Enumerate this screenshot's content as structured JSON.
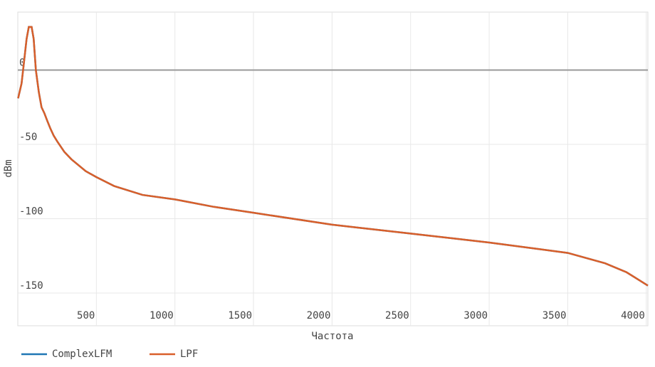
{
  "chart_data": {
    "type": "line",
    "x_label": "Частота",
    "y_label": "dBm",
    "x": [
      2,
      24,
      38,
      56,
      70,
      88,
      101,
      115,
      134,
      151,
      169,
      187,
      206,
      228,
      251,
      296,
      341,
      432,
      500,
      613,
      794,
      1000,
      1247,
      1500,
      2000,
      2500,
      3000,
      3500,
      3738,
      3874,
      3965,
      4010
    ],
    "series": [
      {
        "name": "ComplexLFM",
        "color": "#1f77b4",
        "values": [
          -19,
          -9,
          4,
          21,
          29,
          29,
          21,
          0,
          -15,
          -25,
          -29,
          -34,
          -39,
          -44,
          -48,
          -55,
          -60,
          -68,
          -72,
          -78,
          -84,
          -87,
          -92,
          -96,
          -104,
          -110,
          -116,
          -123,
          -130,
          -136,
          -142,
          -145
        ]
      },
      {
        "name": "LPF",
        "color": "#d95f2a",
        "values": [
          -19,
          -9,
          4,
          21,
          29,
          29,
          21,
          0,
          -15,
          -25,
          -29,
          -34,
          -39,
          -44,
          -48,
          -55,
          -60,
          -68,
          -72,
          -78,
          -84,
          -87,
          -92,
          -96,
          -104,
          -110,
          -116,
          -123,
          -130,
          -136,
          -142,
          -145
        ]
      }
    ],
    "xlim": [
      0,
      4010
    ],
    "ylim": [
      -172,
      39
    ],
    "xticks": [
      500,
      1000,
      1500,
      2000,
      2500,
      3000,
      3500,
      4000
    ],
    "yticks": [
      -150,
      -100,
      -50,
      0
    ],
    "grid": true,
    "zeroline": true,
    "legend": "bottom-left"
  }
}
